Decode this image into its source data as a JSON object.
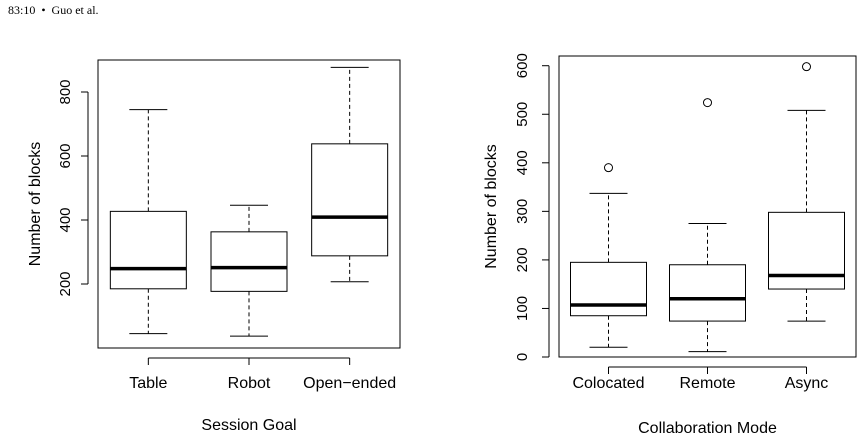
{
  "header": {
    "text": "83:10  •  Guo et al."
  },
  "chart_data": [
    {
      "type": "box",
      "xlabel": "Session Goal",
      "ylabel": "Number of blocks",
      "ylim": [
        0,
        900
      ],
      "yticks": [
        200,
        400,
        600,
        800
      ],
      "categories": [
        "Table",
        "Robot",
        "Open−ended"
      ],
      "boxes": [
        {
          "category": "Table",
          "whisker_low": 45,
          "q1": 185,
          "median": 248,
          "q3": 427,
          "whisker_high": 745,
          "outliers": []
        },
        {
          "category": "Robot",
          "whisker_low": 37,
          "q1": 177,
          "median": 251,
          "q3": 363,
          "whisker_high": 446,
          "outliers": []
        },
        {
          "category": "Open−ended",
          "whisker_low": 207,
          "q1": 288,
          "median": 409,
          "q3": 638,
          "whisker_high": 877,
          "outliers": []
        }
      ]
    },
    {
      "type": "box",
      "xlabel": "Collaboration Mode",
      "ylabel": "Number of blocks",
      "ylim": [
        0,
        620
      ],
      "yticks": [
        0,
        100,
        200,
        300,
        400,
        500,
        600
      ],
      "categories": [
        "Colocated",
        "Remote",
        "Async"
      ],
      "boxes": [
        {
          "category": "Colocated",
          "whisker_low": 20,
          "q1": 85,
          "median": 107,
          "q3": 195,
          "whisker_high": 337,
          "outliers": [
            390
          ]
        },
        {
          "category": "Remote",
          "whisker_low": 11,
          "q1": 74,
          "median": 120,
          "q3": 190,
          "whisker_high": 275,
          "outliers": [
            524
          ]
        },
        {
          "category": "Async",
          "whisker_low": 74,
          "q1": 140,
          "median": 168,
          "q3": 298,
          "whisker_high": 508,
          "outliers": [
            598
          ]
        }
      ]
    }
  ]
}
